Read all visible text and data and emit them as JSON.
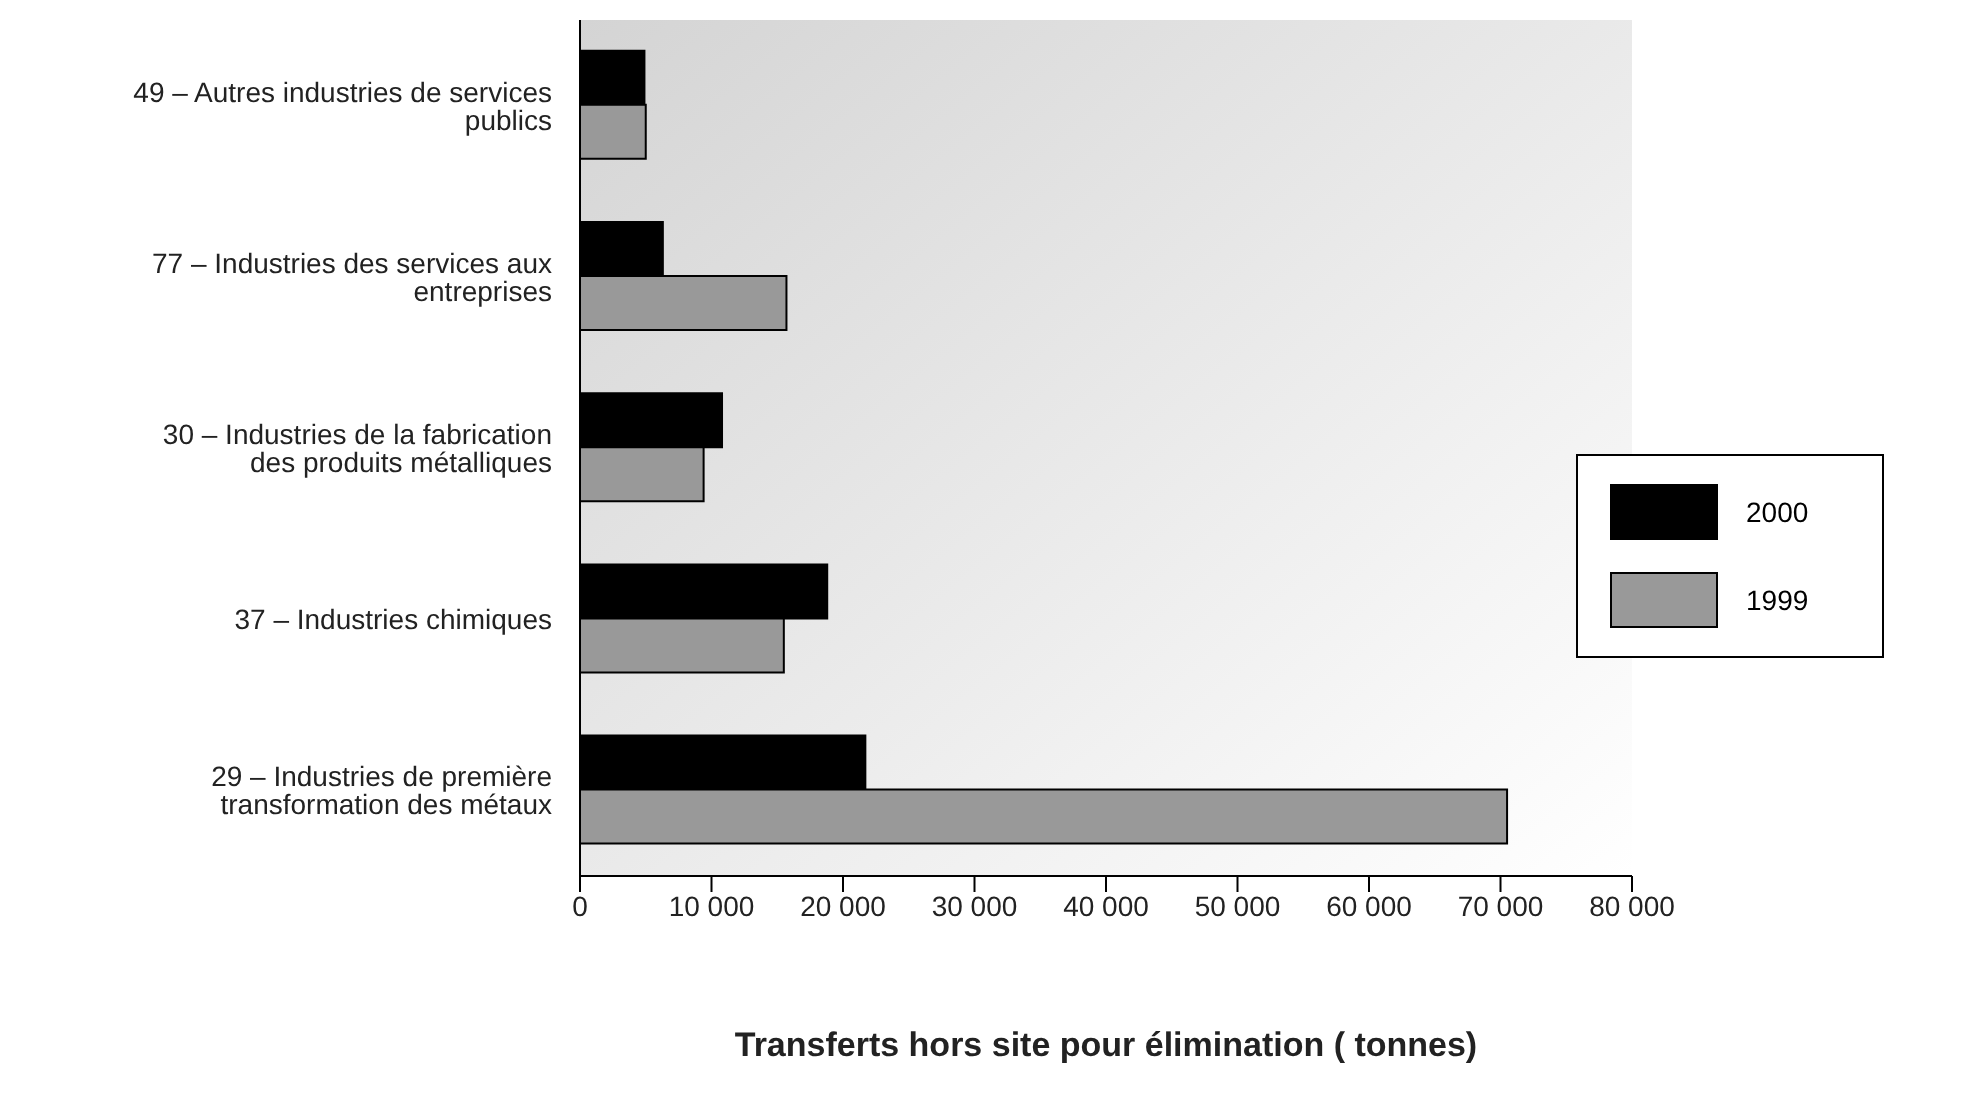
{
  "chart_data": {
    "type": "bar",
    "orientation": "horizontal",
    "xlabel": "Transferts hors site pour élimination ( tonnes)",
    "categories": [
      "49 – Autres industries de services publics",
      "77 – Industries des services aux entreprises",
      "30 – Industries de la fabrication des produits métalliques",
      "37 – Industries chimiques",
      "29 – Industries de première transformation des métaux"
    ],
    "series": [
      {
        "name": "2000",
        "color": "#000000",
        "values": [
          4900,
          6300,
          10800,
          18800,
          21700
        ]
      },
      {
        "name": "1999",
        "color": "#999999",
        "values": [
          5000,
          15700,
          9400,
          15500,
          70500
        ]
      }
    ],
    "xlim": [
      0,
      80000
    ],
    "xticks": [
      0,
      {
        "value": 10000,
        "label": "10 000"
      },
      {
        "value": 20000,
        "label": "20 000"
      },
      {
        "value": 30000,
        "label": "30 000"
      },
      {
        "value": 40000,
        "label": "40 000"
      },
      {
        "value": 50000,
        "label": "50 000"
      },
      {
        "value": 60000,
        "label": "60 000"
      },
      {
        "value": 70000,
        "label": "70 000"
      },
      {
        "value": 80000,
        "label": "80 000"
      }
    ],
    "grid": false,
    "legend": "right"
  }
}
